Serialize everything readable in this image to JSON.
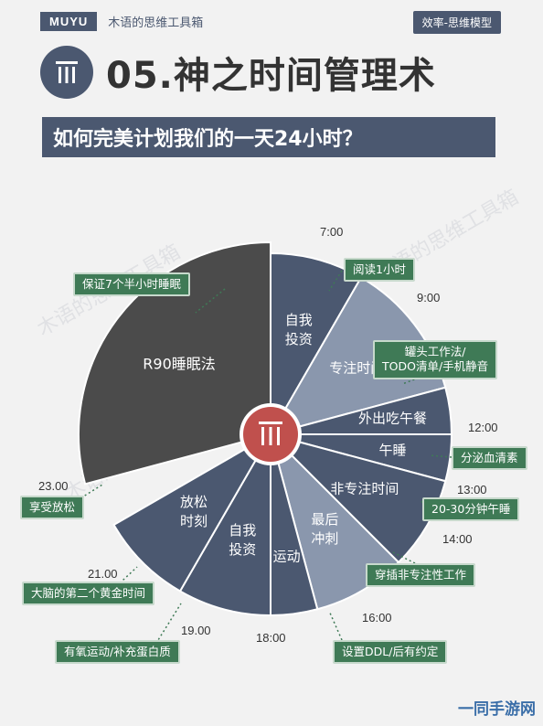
{
  "header": {
    "brand": "MUYU",
    "brand_sub": "木语的思维工具箱",
    "topic_tag": "效率-思维模型",
    "title": "05.神之时间管理术",
    "subtitle": "如何完美计划我们的一天24小时？"
  },
  "colors": {
    "dark": "#4b4b4b",
    "navy": "#4b5870",
    "steel": "#8a97ad",
    "accent": "#c0504d",
    "tag_green": "#3f7a56"
  },
  "segments": [
    {
      "label": "R90睡眠法",
      "start": 0,
      "end": 7,
      "color": "dark"
    },
    {
      "label": "自我\n投资",
      "start": 7,
      "end": 9,
      "color": "navy"
    },
    {
      "label": "专注时间",
      "start": 9,
      "end": 12,
      "color": "steel"
    },
    {
      "label": "外出吃午餐",
      "start": 12,
      "end": 13,
      "color": "navy"
    },
    {
      "label": "午睡",
      "start": 13,
      "end": 14,
      "color": "navy"
    },
    {
      "label": "非专注时间",
      "start": 14,
      "end": 16,
      "color": "navy"
    },
    {
      "label": "最后\n冲刺",
      "start": 16,
      "end": 18,
      "color": "steel"
    },
    {
      "label": "运动",
      "start": 18,
      "end": 19,
      "color": "navy"
    },
    {
      "label": "自我\n投资",
      "start": 19,
      "end": 21,
      "color": "navy"
    },
    {
      "label": "放松\n时刻",
      "start": 21,
      "end": 23,
      "color": "navy"
    }
  ],
  "times": [
    "7:00",
    "9:00",
    "12:00",
    "13:00",
    "14:00",
    "16:00",
    "18:00",
    "19.00",
    "21.00",
    "23.00"
  ],
  "tags": {
    "sleep": "保证7个半小时睡眠",
    "reading": "阅读1小时",
    "focus_method": "罐头工作法/\nTODO清单/手机静音",
    "lunch": "分泌血清素",
    "nap": "20-30分钟午睡",
    "non_focus": "穿插非专注性工作",
    "deadline": "设置DDL/后有约定",
    "exercise": "有氧运动/补充蛋白质",
    "golden": "大脑的第二个黄金时间",
    "relax": "享受放松"
  },
  "watermark": "木语的思维工具箱",
  "corner_logo": "一同手游网"
}
